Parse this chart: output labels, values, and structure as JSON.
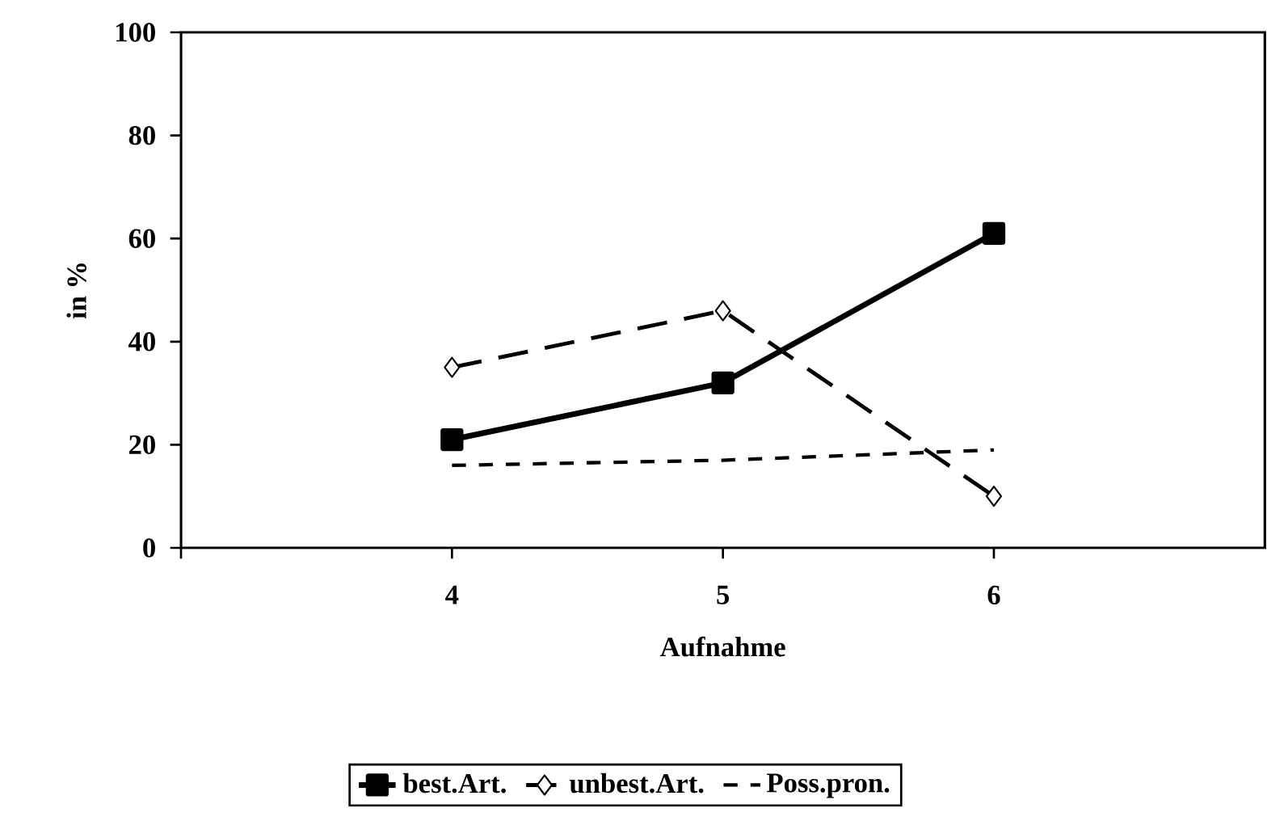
{
  "chart_data": {
    "type": "line",
    "xlabel": "Aufnahme",
    "ylabel": "in %",
    "x": [
      4,
      5,
      6
    ],
    "xlim": [
      3,
      7
    ],
    "xticks": [
      {
        "value": 3,
        "label": null
      },
      4,
      5,
      6
    ],
    "ylim": [
      0,
      100
    ],
    "yticks": [
      0,
      20,
      40,
      60,
      80,
      100
    ],
    "legend": "bottom",
    "grid": false,
    "series": [
      {
        "name": "best.Art.",
        "color": "#000000",
        "values": [
          21,
          32,
          61
        ],
        "marker": "square",
        "line_style": "solid"
      },
      {
        "name": "unbest.Art.",
        "color": "#000000",
        "values": [
          35,
          46,
          10
        ],
        "marker": "diamond",
        "line_style": "dashed"
      },
      {
        "name": "Poss.pron.",
        "color": "#000000",
        "values": [
          16,
          17,
          19
        ],
        "marker": "none",
        "line_style": "dotted"
      }
    ]
  }
}
